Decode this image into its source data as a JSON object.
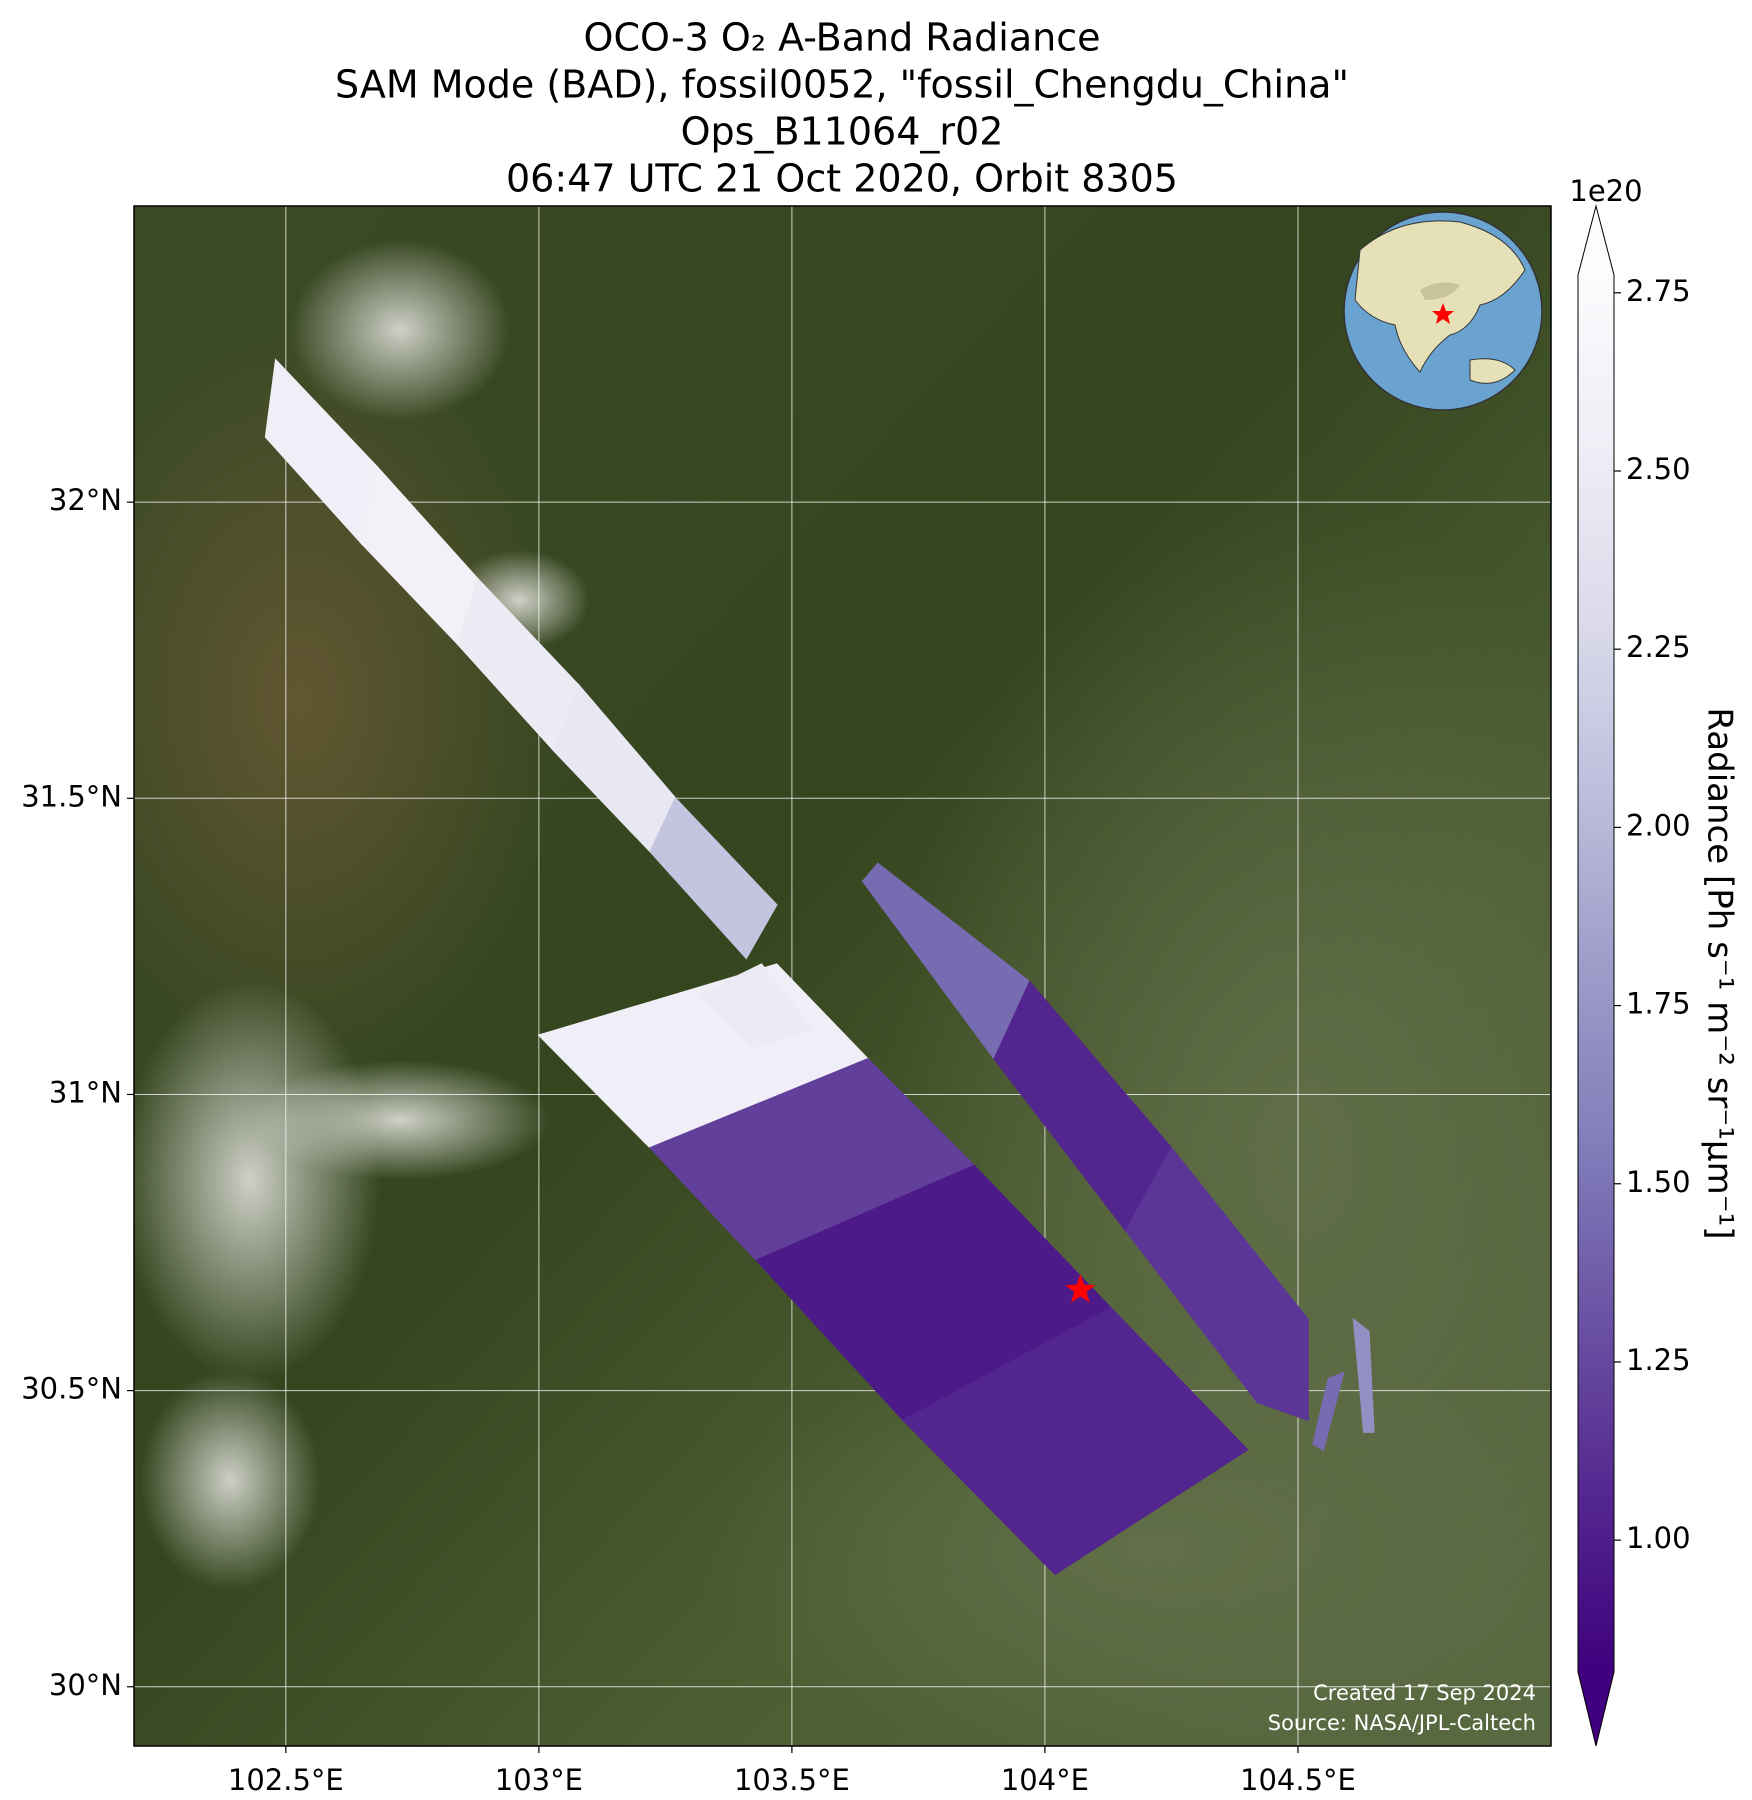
{
  "chart_data": {
    "type": "map",
    "title": [
      "OCO-3 O₂ A-Band Radiance",
      "SAM Mode (BAD), fossil0052, \"fossil_Chengdu_China\"",
      "Ops_B11064_r02",
      "06:47 UTC 21 Oct 2020, Orbit 8305"
    ],
    "xlim": [
      102.2,
      105.0
    ],
    "ylim": [
      29.9,
      32.5
    ],
    "xticks": [
      {
        "value": 102.5,
        "label": "102.5°E"
      },
      {
        "value": 103,
        "label": "103°E"
      },
      {
        "value": 103.5,
        "label": "103.5°E"
      },
      {
        "value": 104,
        "label": "104°E"
      },
      {
        "value": 104.5,
        "label": "104.5°E"
      }
    ],
    "yticks": [
      {
        "value": 30,
        "label": "30°N"
      },
      {
        "value": 30.5,
        "label": "30.5°N"
      },
      {
        "value": 31,
        "label": "31°N"
      },
      {
        "value": 31.5,
        "label": "31.5°N"
      },
      {
        "value": 32,
        "label": "32°N"
      }
    ],
    "grid": true,
    "footprints": [
      {
        "lon": [
          102.46,
          102.48,
          102.68,
          102.65
        ],
        "lat": [
          32.11,
          32.24,
          32.06,
          31.93
        ],
        "value": 2.55
      },
      {
        "lon": [
          102.65,
          102.68,
          102.88,
          102.84
        ],
        "lat": [
          31.93,
          32.06,
          31.87,
          31.76
        ],
        "value": 2.6
      },
      {
        "lon": [
          102.84,
          102.88,
          103.08,
          103.03
        ],
        "lat": [
          31.76,
          31.87,
          31.69,
          31.58
        ],
        "value": 2.5
      },
      {
        "lon": [
          103.03,
          103.08,
          103.27,
          103.22
        ],
        "lat": [
          31.58,
          31.69,
          31.5,
          31.41
        ],
        "value": 2.45
      },
      {
        "lon": [
          103.22,
          103.27,
          103.47,
          103.41
        ],
        "lat": [
          31.41,
          31.5,
          31.32,
          31.23
        ],
        "value": 2.1
      },
      {
        "lon": [
          103.0,
          103.47,
          103.65,
          103.22
        ],
        "lat": [
          31.1,
          31.22,
          31.06,
          30.91
        ],
        "value": 2.55
      },
      {
        "lon": [
          103.22,
          103.65,
          103.86,
          103.43
        ],
        "lat": [
          30.91,
          31.06,
          30.88,
          30.72
        ],
        "value": 1.2
      },
      {
        "lon": [
          103.43,
          103.86,
          104.13,
          103.72
        ],
        "lat": [
          30.72,
          30.88,
          30.64,
          30.45
        ],
        "value": 0.98
      },
      {
        "lon": [
          103.72,
          104.13,
          104.4,
          104.02
        ],
        "lat": [
          30.45,
          30.64,
          30.4,
          30.19
        ],
        "value": 1.05
      },
      {
        "lon": [
          103.32,
          103.44,
          103.54,
          103.42
        ],
        "lat": [
          31.17,
          31.22,
          31.11,
          31.08
        ],
        "value": 2.5
      },
      {
        "lon": [
          103.64,
          103.67,
          103.97,
          103.9
        ],
        "lat": [
          31.36,
          31.39,
          31.19,
          31.06
        ],
        "value": 1.45
      },
      {
        "lon": [
          103.9,
          103.97,
          104.25,
          104.16
        ],
        "lat": [
          31.06,
          31.19,
          30.91,
          30.77
        ],
        "value": 1.05
      },
      {
        "lon": [
          104.16,
          104.25,
          104.52,
          104.52,
          104.42
        ],
        "lat": [
          30.77,
          30.91,
          30.62,
          30.45,
          30.48
        ],
        "value": 1.15
      },
      {
        "lon": [
          104.56,
          104.59,
          104.55,
          104.53
        ],
        "lat": [
          30.52,
          30.53,
          30.4,
          30.41
        ],
        "value": 1.45
      },
      {
        "lon": [
          104.61,
          104.64,
          104.65,
          104.63
        ],
        "lat": [
          30.62,
          30.6,
          30.43,
          30.43
        ],
        "value": 1.7
      }
    ],
    "target": {
      "lon": 104.07,
      "lat": 30.67,
      "color": "#ff0000"
    },
    "colorbar": {
      "label": "Radiance [Ph s⁻¹ m⁻² sr⁻¹μm⁻¹]",
      "exponent": "1e20",
      "clim": [
        0.815,
        2.775
      ],
      "extend": "both",
      "colormap": [
        "#3f007d",
        "#54278f",
        "#6a51a3",
        "#807dba",
        "#9e9ac8",
        "#bcbddc",
        "#dadaeb",
        "#efedf5",
        "#fcfbfd"
      ],
      "ticks": [
        {
          "value": 1,
          "label": "1.00"
        },
        1.25,
        {
          "value": 1.5,
          "label": "1.50"
        },
        1.75,
        {
          "value": 2,
          "label": "2.00"
        },
        2.25,
        {
          "value": 2.5,
          "label": "2.50"
        },
        2.75
      ]
    },
    "footer": [
      "Created 17 Sep 2024",
      "Source: NASA/JPL-Caltech"
    ]
  }
}
